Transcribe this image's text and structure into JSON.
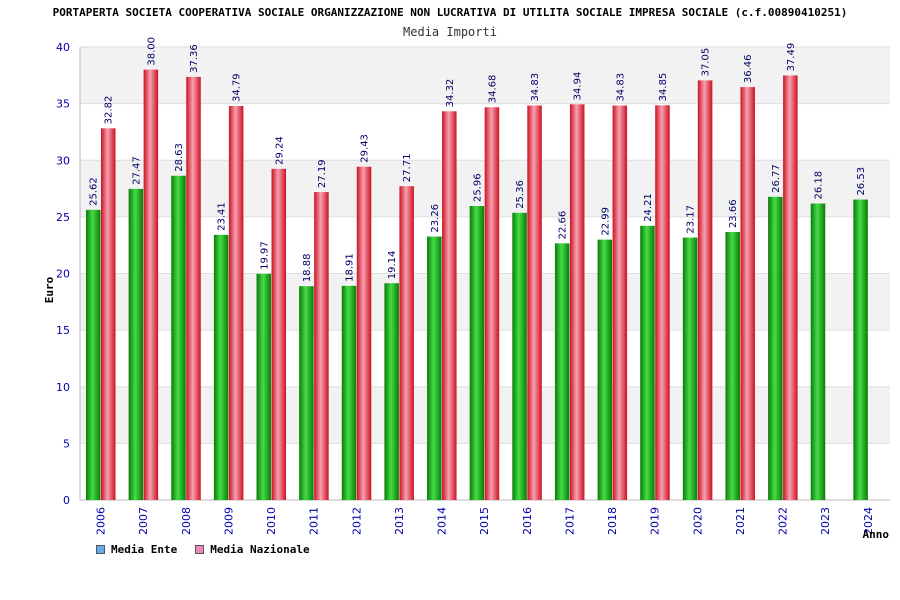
{
  "chart_data": {
    "type": "bar",
    "title": "PORTAPERTA SOCIETA COOPERATIVA SOCIALE ORGANIZZAZIONE NON LUCRATIVA DI UTILITA SOCIALE IMPRESA SOCIALE (c.f.00890410251)",
    "subtitle": "Media Importi",
    "xlabel": "Anno",
    "ylabel": "Euro",
    "ylim": [
      0,
      40
    ],
    "yticks": [
      0,
      5,
      10,
      15,
      20,
      25,
      30,
      35,
      40
    ],
    "categories": [
      "2006",
      "2007",
      "2008",
      "2009",
      "2010",
      "2011",
      "2012",
      "2013",
      "2014",
      "2015",
      "2016",
      "2017",
      "2018",
      "2019",
      "2020",
      "2021",
      "2022",
      "2023",
      "2024"
    ],
    "series": [
      {
        "name": "Media Ente",
        "color": "#22aa22",
        "values": [
          25.62,
          27.47,
          28.63,
          23.41,
          19.97,
          18.88,
          18.91,
          19.14,
          23.26,
          25.96,
          25.36,
          22.66,
          22.99,
          24.21,
          23.17,
          23.66,
          26.77,
          26.18,
          26.53
        ],
        "labels": [
          "25.62",
          "27.47",
          "28.63",
          "23.41",
          "19.97",
          "18.88",
          "18.91",
          "19.14",
          "23.26",
          "25.96",
          "25.36",
          "22.66",
          "22.99",
          "24.21",
          "23.17",
          "23.66",
          "26.77",
          "26.18",
          "26.53"
        ]
      },
      {
        "name": "Media Nazionale",
        "color": "#dd2233",
        "values": [
          32.82,
          38.0,
          37.36,
          34.79,
          29.24,
          27.19,
          29.43,
          27.71,
          34.32,
          34.68,
          34.83,
          34.94,
          34.83,
          34.85,
          37.05,
          36.46,
          37.49,
          null,
          null
        ],
        "labels": [
          "32.82",
          "38.00",
          "37.36",
          "34.79",
          "29.24",
          "27.19",
          "29.43",
          "27.71",
          "34.32",
          "34.68",
          "34.83",
          "34.94",
          "34.83",
          "34.85",
          "37.05",
          "36.46",
          "37.49",
          "",
          ""
        ]
      }
    ],
    "legend": [
      {
        "label": "Media Ente",
        "color": "#66aaee"
      },
      {
        "label": "Media Nazionale",
        "color": "#ee88bb"
      }
    ]
  }
}
